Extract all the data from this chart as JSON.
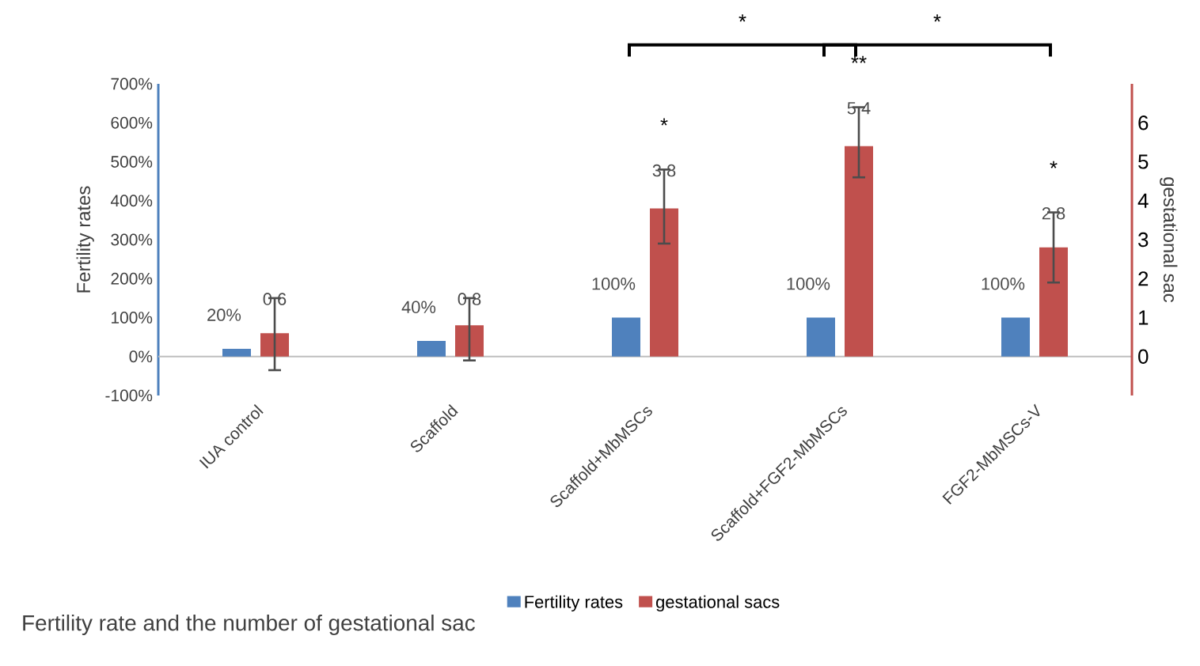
{
  "chart_data": {
    "type": "bar",
    "title": "Fertility rate and the number of gestational sac",
    "ylabel": "Fertility rates",
    "y2label": "gestational sac",
    "categories": [
      "IUA control",
      "Scaffold",
      "Scaffold+MbMSCs",
      "Scaffold+FGF2-MbMSCs",
      "FGF2-MbMSCs-V"
    ],
    "series": [
      {
        "name": "Fertility rates",
        "color": "#4f81bd",
        "values": [
          20,
          40,
          100,
          100,
          100
        ],
        "value_labels": [
          "20%",
          "40%",
          "100%",
          "100%",
          "100%"
        ]
      },
      {
        "name": "gestational sacs",
        "color": "#c0504d",
        "axis": "y2",
        "values": [
          0.6,
          0.8,
          3.8,
          5.4,
          2.8
        ],
        "value_labels": [
          "0.6",
          "0.8",
          "3.8",
          "5.4",
          "2.8"
        ],
        "errors": [
          [
            -0.35,
            1.5
          ],
          [
            -0.1,
            1.5
          ],
          [
            2.9,
            4.8
          ],
          [
            4.6,
            6.4
          ],
          [
            1.9,
            3.7
          ]
        ]
      }
    ],
    "ylim": [
      -100,
      700
    ],
    "yticks": [
      {
        "value": -100,
        "label": "-100%"
      },
      {
        "value": 0,
        "label": "0%"
      },
      {
        "value": 100,
        "label": "100%"
      },
      {
        "value": 200,
        "label": "200%"
      },
      {
        "value": 300,
        "label": "300%"
      },
      {
        "value": 400,
        "label": "400%"
      },
      {
        "value": 500,
        "label": "500%"
      },
      {
        "value": 600,
        "label": "600%"
      },
      {
        "value": 700,
        "label": "700%"
      }
    ],
    "y2lim": [
      -1,
      7
    ],
    "y2ticks": [
      0,
      1,
      2,
      3,
      4,
      5,
      6
    ],
    "annotations": [
      "*",
      "**",
      "*",
      "*",
      "*"
    ],
    "legend": "bottom"
  }
}
